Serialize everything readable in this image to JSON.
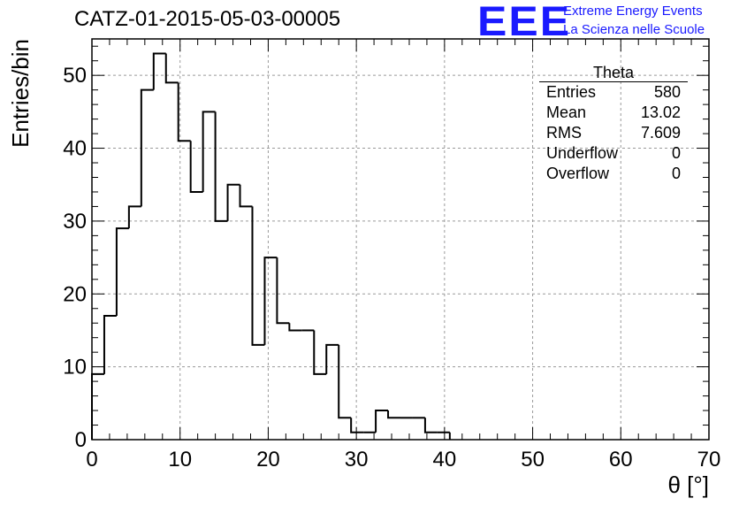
{
  "title": "CATZ-01-2015-05-03-00005",
  "logo": {
    "text": "EEE",
    "line1": "Extreme Energy Events",
    "line2": "La Scienza nelle Scuole",
    "color": "#1a1aff"
  },
  "stats_box": {
    "name": "Theta",
    "rows": [
      {
        "label": "Entries",
        "value": "580"
      },
      {
        "label": "Mean",
        "value": "13.02"
      },
      {
        "label": "RMS",
        "value": "7.609"
      },
      {
        "label": "Underflow",
        "value": "0"
      },
      {
        "label": "Overflow",
        "value": "0"
      }
    ]
  },
  "chart_data": {
    "type": "bar",
    "title": "CATZ-01-2015-05-03-00005",
    "xlabel": "θ [°]",
    "ylabel": "Entries/bin",
    "xlim": [
      0,
      70
    ],
    "ylim": [
      0,
      55
    ],
    "grid": true,
    "bin_width": 1.4,
    "bin_edges_start": 0,
    "values": [
      9,
      17,
      29,
      32,
      48,
      53,
      49,
      41,
      34,
      45,
      30,
      35,
      32,
      13,
      25,
      16,
      15,
      15,
      9,
      13,
      3,
      1,
      1,
      4,
      3,
      3,
      3,
      1,
      1
    ],
    "x_ticks": [
      0,
      10,
      20,
      30,
      40,
      50,
      60,
      70
    ],
    "y_ticks": [
      0,
      10,
      20,
      30,
      40,
      50
    ]
  }
}
